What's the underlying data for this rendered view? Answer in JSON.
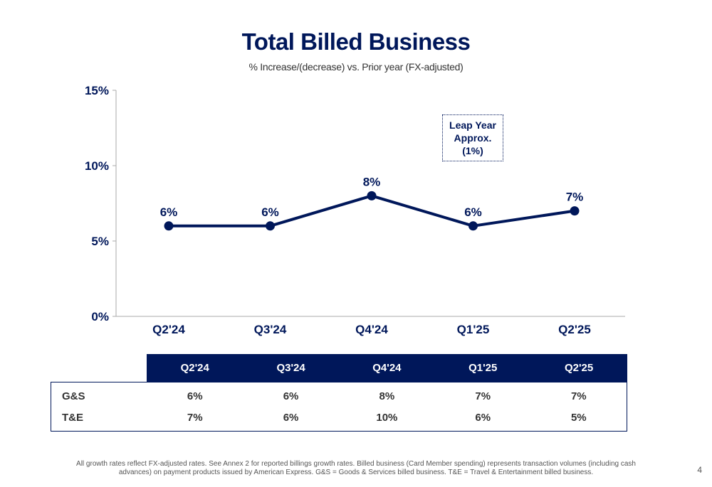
{
  "page": {
    "title": "Total Billed Business",
    "subtitle": "% Increase/(decrease) vs. Prior year (FX-adjusted)",
    "annotation": "Leap Year Approx. (1%)",
    "footnote": "All growth rates reflect FX-adjusted rates. See Annex 2 for reported billings growth rates. Billed business (Card Member spending) represents transaction volumes (including cash advances) on payment products issued by American Express. G&S = Goods & Services billed business. T&E = Travel & Entertainment billed business.",
    "page_number": "4"
  },
  "colors": {
    "primary": "#00175a",
    "axis": "#aaaaaa"
  },
  "chart_data": [
    {
      "type": "line",
      "title": "Total Billed Business",
      "subtitle": "% Increase/(decrease) vs. Prior year (FX-adjusted)",
      "categories": [
        "Q2'24",
        "Q3'24",
        "Q4'24",
        "Q1'25",
        "Q2'25"
      ],
      "values": [
        6,
        6,
        8,
        6,
        7
      ],
      "data_labels": [
        "6%",
        "6%",
        "8%",
        "6%",
        "7%"
      ],
      "ylim": [
        0,
        15
      ],
      "yticks": [
        0,
        5,
        10,
        15
      ],
      "ytick_labels": [
        "0%",
        "5%",
        "10%",
        "15%"
      ],
      "grid": false,
      "legend": "none"
    },
    {
      "type": "table",
      "columns": [
        "Q2'24",
        "Q3'24",
        "Q4'24",
        "Q1'25",
        "Q2'25"
      ],
      "rows": [
        {
          "label": "G&S",
          "values": [
            "6%",
            "6%",
            "8%",
            "7%",
            "7%"
          ]
        },
        {
          "label": "T&E",
          "values": [
            "7%",
            "6%",
            "10%",
            "6%",
            "5%"
          ]
        }
      ]
    }
  ]
}
